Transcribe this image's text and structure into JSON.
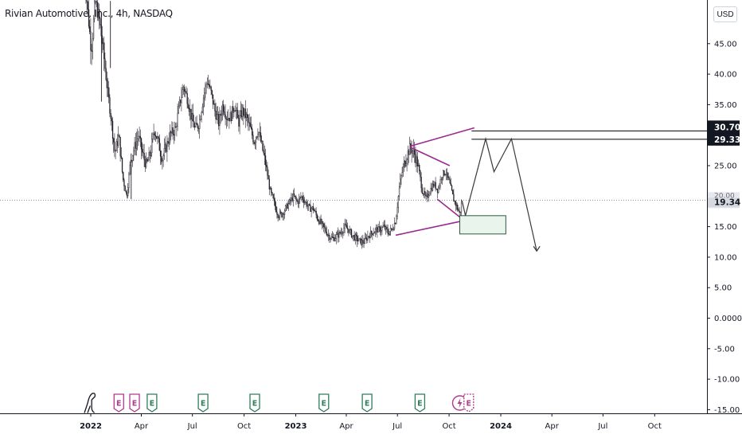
{
  "header": {
    "symbol_title": "Rivian Automotive, Inc., 4h, NASDAQ",
    "currency_button": "USD"
  },
  "price_tags": {
    "level_high": "30.70",
    "level_low": "29.33",
    "last_price": "19.34",
    "last_price_partial": "20.00"
  },
  "colors": {
    "candle": "#26202a",
    "drawing": "#9c2a8f",
    "guide": "#000000",
    "zone_fill": "#e9f5ec",
    "zone_border": "#2e5a3e",
    "earnings_green": "#2e7d5b",
    "earnings_pink": "#b03a8c"
  },
  "chart_data": {
    "type": "line",
    "title": "Rivian Automotive, Inc., 4h, NASDAQ",
    "xlabel": "",
    "ylabel": "",
    "x_ticks": [
      "2022",
      "Apr",
      "Jul",
      "Oct",
      "2023",
      "Apr",
      "Jul",
      "Oct",
      "2024",
      "Apr",
      "Jul",
      "Oct"
    ],
    "y_ticks": [
      "45.00",
      "40.00",
      "35.00",
      "30.00",
      "25.00",
      "20.00",
      "15.00",
      "10.00",
      "5.00",
      "0.0000",
      "-5.00",
      "-10.00",
      "-15.00"
    ],
    "ylim": [
      -15,
      50
    ],
    "grid": false,
    "series": [
      {
        "values": [
          [
            "2021-12-20",
            58.0
          ],
          [
            "2021-12-26",
            51.0
          ],
          [
            "2022-01-02",
            44.0
          ],
          [
            "2022-01-09",
            52.0
          ],
          [
            "2022-01-16",
            49.0
          ],
          [
            "2022-01-23",
            44.0
          ],
          [
            "2022-01-30",
            38.0
          ],
          [
            "2022-02-06",
            33.0
          ],
          [
            "2022-02-13",
            27.0
          ],
          [
            "2022-02-20",
            30.0
          ],
          [
            "2022-02-27",
            23.0
          ],
          [
            "2022-03-06",
            20.0
          ],
          [
            "2022-03-13",
            26.0
          ],
          [
            "2022-03-20",
            28.0
          ],
          [
            "2022-03-27",
            30.0
          ],
          [
            "2022-04-03",
            27.0
          ],
          [
            "2022-04-10",
            25.0
          ],
          [
            "2022-04-17",
            27.0
          ],
          [
            "2022-04-24",
            31.0
          ],
          [
            "2022-05-01",
            29.0
          ],
          [
            "2022-05-08",
            26.0
          ],
          [
            "2022-05-15",
            28.0
          ],
          [
            "2022-05-22",
            30.0
          ],
          [
            "2022-06-01",
            31.0
          ],
          [
            "2022-06-08",
            35.0
          ],
          [
            "2022-06-15",
            38.0
          ],
          [
            "2022-06-22",
            36.0
          ],
          [
            "2022-06-29",
            33.0
          ],
          [
            "2022-07-06",
            31.0
          ],
          [
            "2022-07-13",
            32.0
          ],
          [
            "2022-07-20",
            36.0
          ],
          [
            "2022-07-27",
            39.0
          ],
          [
            "2022-08-03",
            37.0
          ],
          [
            "2022-08-10",
            34.0
          ],
          [
            "2022-08-17",
            32.0
          ],
          [
            "2022-08-24",
            35.0
          ],
          [
            "2022-08-31",
            33.0
          ],
          [
            "2022-09-07",
            33.0
          ],
          [
            "2022-09-14",
            35.0
          ],
          [
            "2022-09-21",
            32.0
          ],
          [
            "2022-09-28",
            34.0
          ],
          [
            "2022-10-05",
            33.0
          ],
          [
            "2022-10-12",
            31.0
          ],
          [
            "2022-10-19",
            29.0
          ],
          [
            "2022-10-26",
            31.0
          ],
          [
            "2022-11-02",
            28.0
          ],
          [
            "2022-11-09",
            25.0
          ],
          [
            "2022-11-16",
            21.0
          ],
          [
            "2022-11-23",
            19.0
          ],
          [
            "2022-11-30",
            17.0
          ],
          [
            "2022-12-07",
            17.0
          ],
          [
            "2022-12-14",
            18.0
          ],
          [
            "2022-12-21",
            19.0
          ],
          [
            "2022-12-28",
            20.0
          ],
          [
            "2023-01-04",
            19.0
          ],
          [
            "2023-01-11",
            20.0
          ],
          [
            "2023-01-18",
            19.0
          ],
          [
            "2023-01-25",
            18.0
          ],
          [
            "2023-02-01",
            18.0
          ],
          [
            "2023-02-08",
            16.5
          ],
          [
            "2023-02-15",
            15.5
          ],
          [
            "2023-02-22",
            14.5
          ],
          [
            "2023-03-01",
            13.5
          ],
          [
            "2023-03-08",
            13.0
          ],
          [
            "2023-03-15",
            13.5
          ],
          [
            "2023-03-22",
            14.0
          ],
          [
            "2023-03-29",
            15.0
          ],
          [
            "2023-04-05",
            14.5
          ],
          [
            "2023-04-12",
            13.5
          ],
          [
            "2023-04-19",
            13.0
          ],
          [
            "2023-04-26",
            12.5
          ],
          [
            "2023-05-03",
            12.5
          ],
          [
            "2023-05-10",
            13.5
          ],
          [
            "2023-05-17",
            14.0
          ],
          [
            "2023-05-24",
            14.5
          ],
          [
            "2023-05-31",
            14.5
          ],
          [
            "2023-06-07",
            15.0
          ],
          [
            "2023-06-14",
            14.0
          ],
          [
            "2023-06-21",
            14.5
          ],
          [
            "2023-06-28",
            16.0
          ],
          [
            "2023-07-05",
            22.0
          ],
          [
            "2023-07-12",
            25.0
          ],
          [
            "2023-07-19",
            27.0
          ],
          [
            "2023-07-24",
            28.0
          ],
          [
            "2023-07-31",
            27.0
          ],
          [
            "2023-08-07",
            25.0
          ],
          [
            "2023-08-14",
            21.0
          ],
          [
            "2023-08-21",
            19.5
          ],
          [
            "2023-08-28",
            21.0
          ],
          [
            "2023-09-04",
            22.0
          ],
          [
            "2023-09-11",
            21.0
          ],
          [
            "2023-09-18",
            23.5
          ],
          [
            "2023-09-25",
            24.0
          ],
          [
            "2023-10-02",
            22.0
          ],
          [
            "2023-10-09",
            19.5
          ],
          [
            "2023-10-16",
            18.0
          ],
          [
            "2023-10-20",
            17.0
          ],
          [
            "2023-10-24",
            19.3
          ]
        ]
      }
    ],
    "annotations": {
      "wedge_upper": [
        [
          "2023-07-24",
          28.2
        ],
        [
          "2023-11-15",
          31.2
        ]
      ],
      "wedge_lower": [
        [
          "2023-06-28",
          13.6
        ],
        [
          "2023-10-28",
          16.0
        ]
      ],
      "inner_upper": [
        [
          "2023-07-24",
          28.0
        ],
        [
          "2023-10-02",
          25.0
        ]
      ],
      "inner_lower": [
        [
          "2023-09-10",
          19.5
        ],
        [
          "2023-10-28",
          16.0
        ]
      ],
      "h_line_high": {
        "from": "2023-11-10",
        "value": 30.7
      },
      "h_line_low": {
        "from": "2023-11-10",
        "value": 29.33
      },
      "demand_zone": {
        "x0": "2023-10-20",
        "x1": "2024-01-10",
        "y0": 13.8,
        "y1": 16.8
      },
      "last_price_line": 19.34,
      "projection": [
        [
          "2023-10-24",
          19.3
        ],
        [
          "2023-10-30",
          16.8
        ],
        [
          "2023-12-05",
          29.4
        ],
        [
          "2023-12-20",
          24.0
        ],
        [
          "2024-01-20",
          29.4
        ],
        [
          "2024-03-05",
          11.0
        ]
      ]
    },
    "events": {
      "icons": [
        {
          "date": "2021-12-28",
          "type": "dividend-dino"
        },
        {
          "date": "2022-02-20",
          "type": "earnings-past"
        },
        {
          "date": "2022-03-20",
          "type": "earnings-past"
        },
        {
          "date": "2022-04-20",
          "type": "earnings-reported"
        },
        {
          "date": "2022-07-20",
          "type": "earnings-reported"
        },
        {
          "date": "2022-10-20",
          "type": "earnings-reported"
        },
        {
          "date": "2023-02-20",
          "type": "earnings-reported"
        },
        {
          "date": "2023-05-08",
          "type": "earnings-reported"
        },
        {
          "date": "2023-08-10",
          "type": "earnings-reported"
        },
        {
          "date": "2023-10-20",
          "type": "split-lightning"
        },
        {
          "date": "2023-11-05",
          "type": "earnings-upcoming"
        }
      ],
      "label": "E"
    }
  }
}
